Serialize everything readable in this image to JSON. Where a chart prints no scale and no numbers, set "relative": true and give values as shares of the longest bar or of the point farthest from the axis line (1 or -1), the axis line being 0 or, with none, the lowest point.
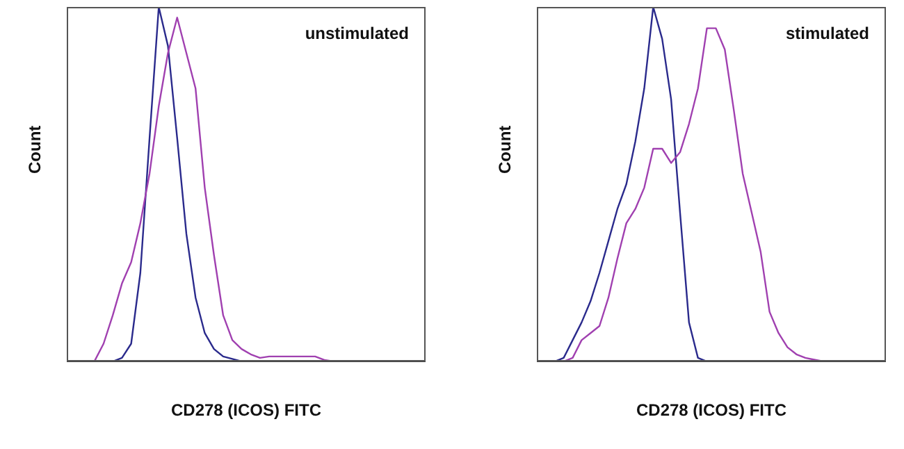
{
  "chart_data": [
    {
      "type": "line",
      "relative": true,
      "marker": "none",
      "xlabel": "CD278 (ICOS) FITC",
      "ylabel": "Count",
      "annotations": [
        "unstimulated"
      ],
      "categories": [
        null,
        null,
        null,
        null,
        null,
        null,
        null,
        null,
        null,
        null,
        null,
        null,
        null,
        null,
        null,
        null,
        null,
        null,
        null,
        null,
        null,
        null,
        null,
        null,
        null,
        null,
        null,
        null,
        null,
        null,
        null,
        null,
        null,
        null,
        null,
        null,
        null,
        null,
        null,
        null
      ],
      "series": [
        {
          "color": "#2a2a8c",
          "values": [
            null,
            null,
            null,
            null,
            null,
            0,
            0.01,
            0.05,
            0.25,
            0.63,
            1,
            0.89,
            0.63,
            0.36,
            0.18,
            0.08,
            0.035,
            0.014,
            0.007,
            0,
            null,
            null,
            null,
            null,
            null,
            null,
            null,
            null,
            null,
            null,
            null,
            null,
            null,
            null,
            null,
            null,
            null,
            null,
            null,
            null
          ]
        },
        {
          "color": "#a040b0",
          "values": [
            null,
            null,
            null,
            0,
            0.05,
            0.13,
            0.22,
            0.28,
            0.39,
            0.53,
            0.72,
            0.87,
            0.97,
            0.87,
            0.77,
            0.49,
            0.3,
            0.13,
            0.06,
            0.035,
            0.02,
            0.01,
            0.014,
            0.014,
            0.014,
            0.014,
            0.014,
            0.014,
            0.004,
            0,
            null,
            null,
            null,
            null,
            null,
            null,
            null,
            null,
            null,
            null
          ]
        }
      ]
    },
    {
      "type": "line",
      "relative": true,
      "marker": "none",
      "xlabel": "CD278 (ICOS) FITC",
      "ylabel": "Count",
      "annotations": [
        "stimulated"
      ],
      "categories": [
        null,
        null,
        null,
        null,
        null,
        null,
        null,
        null,
        null,
        null,
        null,
        null,
        null,
        null,
        null,
        null,
        null,
        null,
        null,
        null,
        null,
        null,
        null,
        null,
        null,
        null,
        null,
        null,
        null,
        null,
        null,
        null,
        null,
        null,
        null,
        null,
        null,
        null,
        null,
        null
      ],
      "series": [
        {
          "color": "#2a2a8c",
          "values": [
            null,
            null,
            0,
            0.01,
            0.06,
            0.11,
            0.17,
            0.25,
            0.34,
            0.43,
            0.5,
            0.62,
            0.77,
            1,
            0.91,
            0.74,
            0.42,
            0.11,
            0.01,
            0,
            null,
            null,
            null,
            null,
            null,
            null,
            null,
            null,
            null,
            null,
            null,
            null,
            null,
            null,
            null,
            null,
            null,
            null,
            null,
            null
          ]
        },
        {
          "color": "#a040b0",
          "values": [
            null,
            null,
            null,
            0,
            0.01,
            0.06,
            0.08,
            0.1,
            0.18,
            0.29,
            0.39,
            0.43,
            0.49,
            0.6,
            0.6,
            0.56,
            0.59,
            0.67,
            0.77,
            0.94,
            0.94,
            0.88,
            0.71,
            0.53,
            0.42,
            0.31,
            0.14,
            0.08,
            0.04,
            0.02,
            0.01,
            0.005,
            0,
            0,
            null,
            null,
            null,
            null,
            null,
            null
          ]
        }
      ]
    }
  ]
}
